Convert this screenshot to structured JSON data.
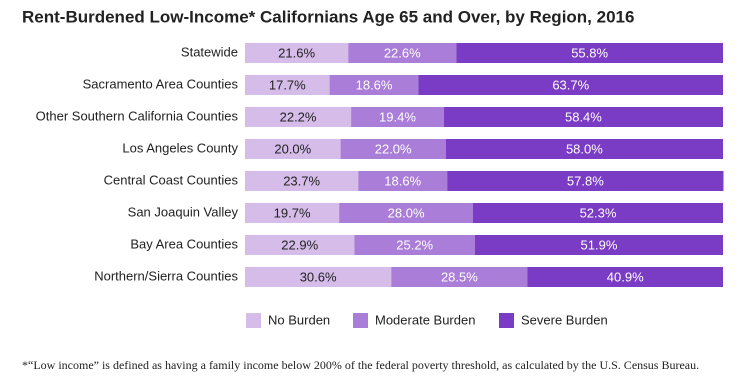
{
  "chart_data": {
    "type": "stacked-bar-horizontal",
    "title": "Rent-Burdened Low-Income* Californians Age 65 and Over, by Region, 2016",
    "categories": [
      "Statewide",
      "Sacramento Area Counties",
      "Other Southern California Counties",
      "Los Angeles County",
      "Central Coast Counties",
      "San Joaquin Valley",
      "Bay Area Counties",
      "Northern/Sierra Counties"
    ],
    "series": [
      {
        "name": "No Burden",
        "color": "#d5bce9",
        "values": [
          21.6,
          17.7,
          22.2,
          20.0,
          23.7,
          19.7,
          22.9,
          30.6
        ],
        "value_labels": [
          "21.6%",
          "17.7%",
          "22.2%",
          "20.0%",
          "23.7%",
          "19.7%",
          "22.9%",
          "30.6%"
        ]
      },
      {
        "name": "Moderate Burden",
        "color": "#a97dd8",
        "values": [
          22.6,
          18.6,
          19.4,
          22.0,
          18.6,
          28.0,
          25.2,
          28.5
        ],
        "value_labels": [
          "22.6%",
          "18.6%",
          "19.4%",
          "22.0%",
          "18.6%",
          "28.0%",
          "25.2%",
          "28.5%"
        ]
      },
      {
        "name": "Severe Burden",
        "color": "#7a3cc4",
        "values": [
          55.8,
          63.7,
          58.4,
          58.0,
          57.8,
          52.3,
          51.9,
          40.9
        ],
        "value_labels": [
          "55.8%",
          "63.7%",
          "58.4%",
          "58.0%",
          "57.8%",
          "52.3%",
          "51.9%",
          "40.9%"
        ]
      }
    ],
    "xlim": [
      0,
      100
    ],
    "footnote": "*“Low income” is defined as having a family income below 200% of the federal poverty threshold, as calculated by the U.S. Census Bureau."
  }
}
